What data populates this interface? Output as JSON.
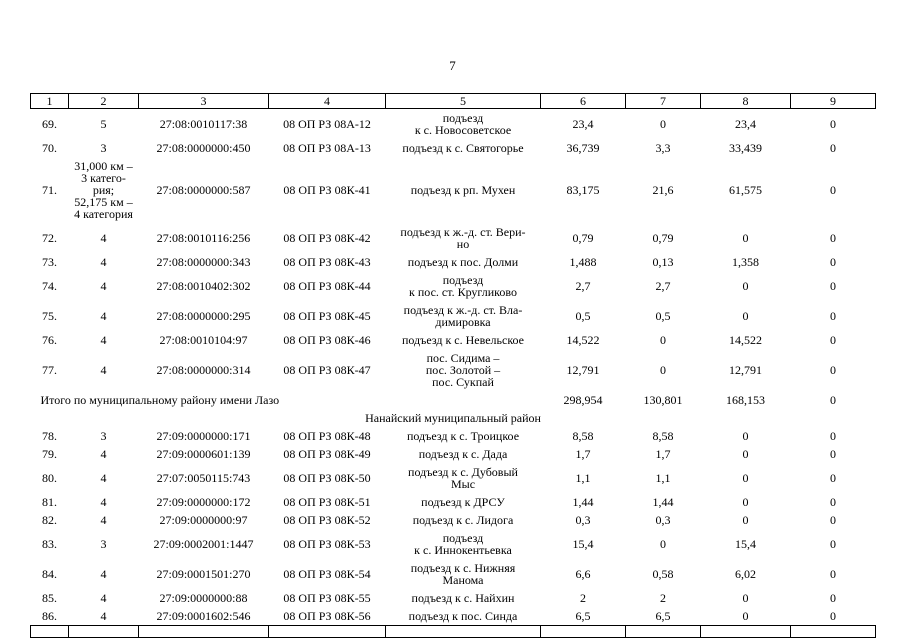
{
  "page": {
    "number": "7"
  },
  "table": {
    "header": [
      "1",
      "2",
      "3",
      "4",
      "5",
      "6",
      "7",
      "8",
      "9"
    ],
    "rows": [
      {
        "type": "data",
        "cells": [
          "69.",
          "5",
          "27:08:0010117:38",
          "08 ОП РЗ 08А-12",
          "подъезд\nк с. Новосоветское",
          "23,4",
          "0",
          "23,4",
          "0"
        ]
      },
      {
        "type": "data",
        "cells": [
          "70.",
          "3",
          "27:08:0000000:450",
          "08 ОП РЗ 08А-13",
          "подъезд к с. Святогорье",
          "36,739",
          "3,3",
          "33,439",
          "0"
        ]
      },
      {
        "type": "data",
        "cells": [
          "71.",
          "31,000 км –\n3 катего-\nрия;\n52,175 км –\n4 категория",
          "27:08:0000000:587",
          "08 ОП РЗ 08К-41",
          "подъезд к рп. Мухен",
          "83,175",
          "21,6",
          "61,575",
          "0"
        ]
      },
      {
        "type": "data",
        "cells": [
          "72.",
          "4",
          "27:08:0010116:256",
          "08 ОП РЗ 08К-42",
          "подъезд к ж.-д. ст. Вери-\nно",
          "0,79",
          "0,79",
          "0",
          "0"
        ]
      },
      {
        "type": "data",
        "cells": [
          "73.",
          "4",
          "27:08:0000000:343",
          "08 ОП РЗ 08К-43",
          "подъезд к пос. Долми",
          "1,488",
          "0,13",
          "1,358",
          "0"
        ]
      },
      {
        "type": "data",
        "cells": [
          "74.",
          "4",
          "27:08:0010402:302",
          "08 ОП РЗ 08К-44",
          "подъезд\nк пос. ст. Кругликово",
          "2,7",
          "2,7",
          "0",
          "0"
        ]
      },
      {
        "type": "data",
        "cells": [
          "75.",
          "4",
          "27:08:0000000:295",
          "08 ОП РЗ 08К-45",
          "подъезд к ж.-д. ст. Вла-\nдимировка",
          "0,5",
          "0,5",
          "0",
          "0"
        ]
      },
      {
        "type": "data",
        "cells": [
          "76.",
          "4",
          "27:08:0010104:97",
          "08 ОП РЗ 08К-46",
          "подъезд к с. Невельское",
          "14,522",
          "0",
          "14,522",
          "0"
        ]
      },
      {
        "type": "data",
        "cells": [
          "77.",
          "4",
          "27:08:0000000:314",
          "08 ОП РЗ 08К-47",
          "пос. Сидима –\nпос. Золотой –\nпос. Сукпай",
          "12,791",
          "0",
          "12,791",
          "0"
        ]
      },
      {
        "type": "total",
        "label": "Итого по муниципальному району имени Лазо",
        "values": [
          "298,954",
          "130,801",
          "168,153",
          "0"
        ]
      },
      {
        "type": "section",
        "label": "Нанайский муниципальный район"
      },
      {
        "type": "data",
        "cells": [
          "78.",
          "3",
          "27:09:0000000:171",
          "08 ОП РЗ 08К-48",
          "подъезд к с. Троицкое",
          "8,58",
          "8,58",
          "0",
          "0"
        ]
      },
      {
        "type": "data",
        "cells": [
          "79.",
          "4",
          "27:09:0000601:139",
          "08 ОП РЗ 08К-49",
          "подъезд к с. Дада",
          "1,7",
          "1,7",
          "0",
          "0"
        ]
      },
      {
        "type": "data",
        "cells": [
          "80.",
          "4",
          "27:07:0050115:743",
          "08 ОП РЗ 08К-50",
          "подъезд к с. Дубовый\nМыс",
          "1,1",
          "1,1",
          "0",
          "0"
        ]
      },
      {
        "type": "data",
        "cells": [
          "81.",
          "4",
          "27:09:0000000:172",
          "08 ОП РЗ 08К-51",
          "подъезд к ДРСУ",
          "1,44",
          "1,44",
          "0",
          "0"
        ]
      },
      {
        "type": "data",
        "cells": [
          "82.",
          "4",
          "27:09:0000000:97",
          "08 ОП РЗ 08К-52",
          "подъезд к с. Лидога",
          "0,3",
          "0,3",
          "0",
          "0"
        ]
      },
      {
        "type": "data",
        "cells": [
          "83.",
          "3",
          "27:09:0002001:1447",
          "08 ОП РЗ 08К-53",
          "подъезд\nк с. Иннокентьевка",
          "15,4",
          "0",
          "15,4",
          "0"
        ]
      },
      {
        "type": "data",
        "cells": [
          "84.",
          "4",
          "27:09:0001501:270",
          "08 ОП РЗ 08К-54",
          "подъезд к с. Нижняя\nМанома",
          "6,6",
          "0,58",
          "6,02",
          "0"
        ]
      },
      {
        "type": "data",
        "cells": [
          "85.",
          "4",
          "27:09:0000000:88",
          "08 ОП РЗ 08К-55",
          "подъезд к с. Найхин",
          "2",
          "2",
          "0",
          "0"
        ]
      },
      {
        "type": "data",
        "cells": [
          "86.",
          "4",
          "27:09:0001602:546",
          "08 ОП РЗ 08К-56",
          "подъезд к пос. Синда",
          "6,5",
          "6,5",
          "0",
          "0"
        ]
      },
      {
        "type": "empty"
      }
    ]
  }
}
